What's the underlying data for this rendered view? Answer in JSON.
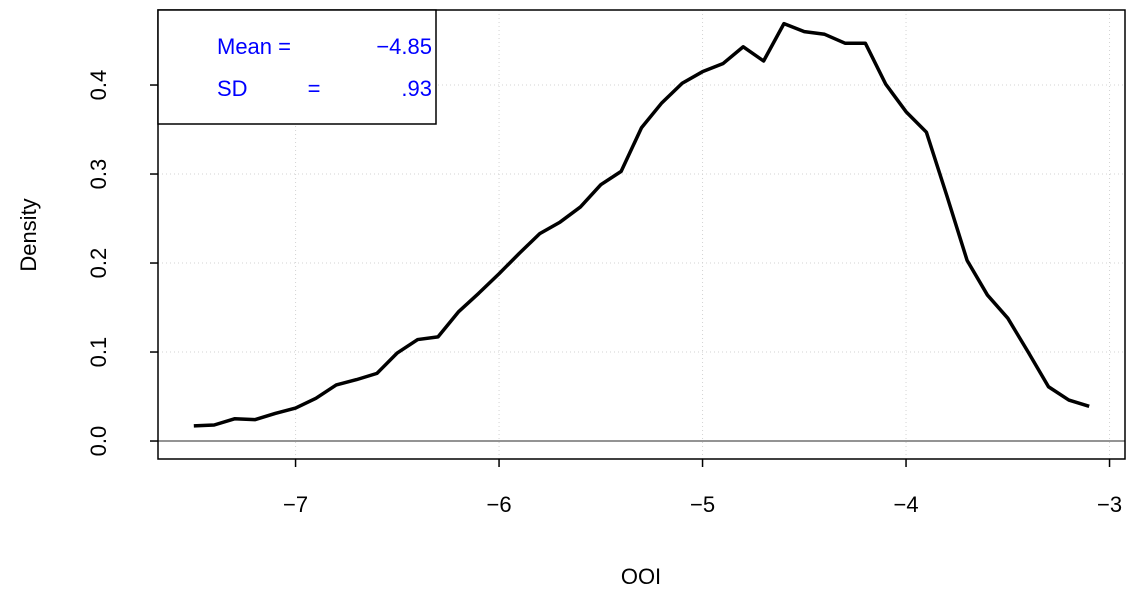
{
  "chart_data": {
    "type": "line",
    "xlabel": "OOI",
    "ylabel": "Density",
    "x": [
      -7.5,
      -7.4,
      -7.3,
      -7.2,
      -7.1,
      -7.0,
      -6.9,
      -6.8,
      -6.7,
      -6.6,
      -6.5,
      -6.4,
      -6.3,
      -6.2,
      -6.1,
      -6.0,
      -5.9,
      -5.8,
      -5.7,
      -5.6,
      -5.5,
      -5.4,
      -5.3,
      -5.2,
      -5.1,
      -5.0,
      -4.9,
      -4.8,
      -4.7,
      -4.6,
      -4.5,
      -4.4,
      -4.3,
      -4.2,
      -4.1,
      -4.0,
      -3.9,
      -3.8,
      -3.7,
      -3.6,
      -3.5,
      -3.4,
      -3.3,
      -3.2,
      -3.1
    ],
    "series": [
      {
        "color": "#000000",
        "values": [
          0.017,
          0.018,
          0.025,
          0.024,
          0.031,
          0.037,
          0.048,
          0.063,
          0.069,
          0.076,
          0.099,
          0.114,
          0.117,
          0.145,
          0.166,
          0.188,
          0.211,
          0.233,
          0.246,
          0.263,
          0.288,
          0.303,
          0.352,
          0.38,
          0.402,
          0.415,
          0.424,
          0.443,
          0.427,
          0.469,
          0.46,
          0.457,
          0.447,
          0.447,
          0.401,
          0.37,
          0.347,
          0.276,
          0.203,
          0.164,
          0.138,
          0.1,
          0.061,
          0.046,
          0.039
        ]
      }
    ],
    "xlim": [
      -7.676,
      -2.924
    ],
    "ylim": [
      -0.0202,
      0.4843
    ],
    "xticks": [
      {
        "value": -7,
        "label": "−7"
      },
      {
        "value": -6,
        "label": "−6"
      },
      {
        "value": -5,
        "label": "−5"
      },
      {
        "value": -4,
        "label": "−4"
      },
      {
        "value": -3,
        "label": "−3"
      }
    ],
    "yticks": [
      {
        "value": 0,
        "label": "0.0"
      },
      0.1,
      0.2,
      0.3,
      0.4
    ],
    "grid": true,
    "legend_text": {
      "mean_label": "Mean =",
      "mean_value": "−4.85",
      "sd_label": "SD",
      "sd_eq": "=",
      "sd_value": ".93",
      "color": "#0000ff"
    }
  }
}
